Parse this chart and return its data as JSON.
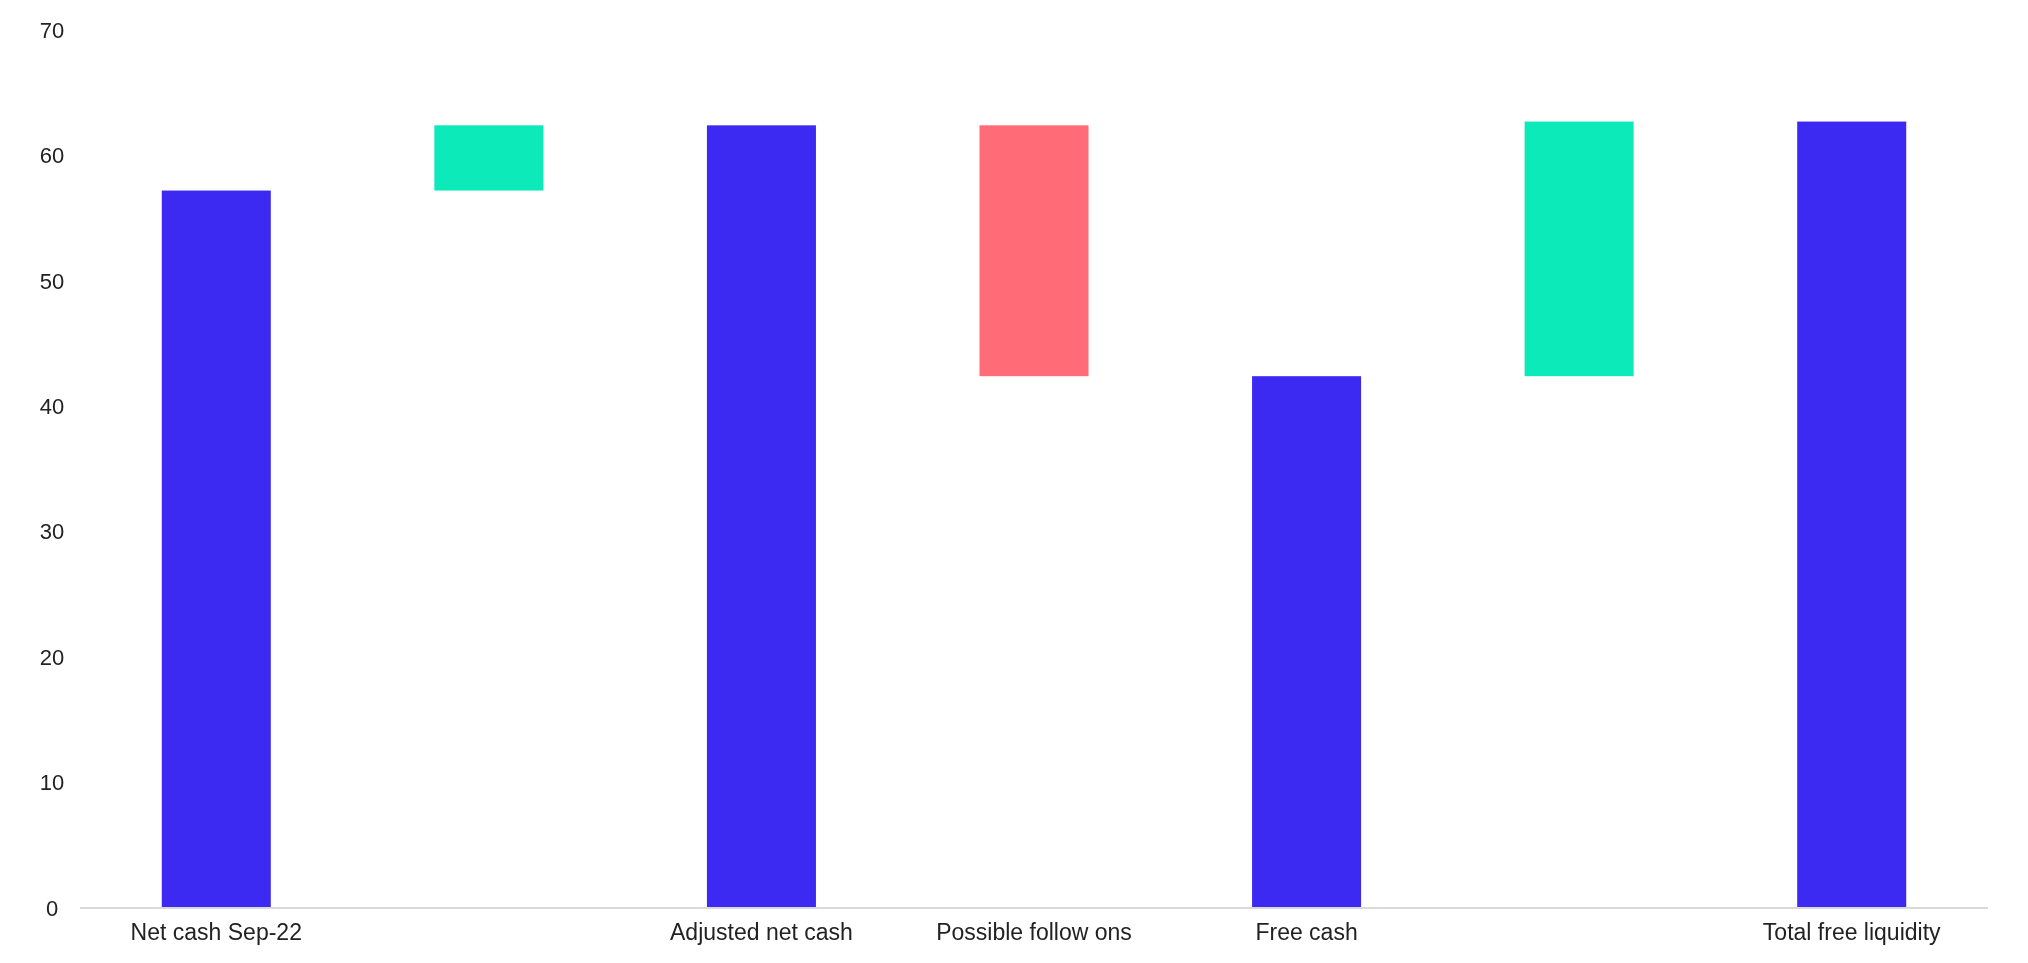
{
  "chart_data": {
    "type": "bar",
    "categories": [
      "Net cash Sep-22",
      null,
      "Adjusted net cash",
      "Possible follow ons",
      "Free cash",
      null,
      "Total free liquidity"
    ],
    "values": [
      57.2,
      5.2,
      62.4,
      20,
      42.4,
      20.3,
      62.7
    ],
    "base": [
      0,
      57.2,
      0,
      42.4,
      0,
      42.4,
      0
    ],
    "colors": [
      "#3d2af2",
      "#0deab9",
      "#3d2af2",
      "#ff6b77",
      "#3d2af2",
      "#0deab9",
      "#3d2af2"
    ],
    "ylim": [
      0,
      70
    ],
    "yticks": [
      0,
      10,
      20,
      30,
      40,
      50,
      60,
      70
    ],
    "grid": false
  }
}
